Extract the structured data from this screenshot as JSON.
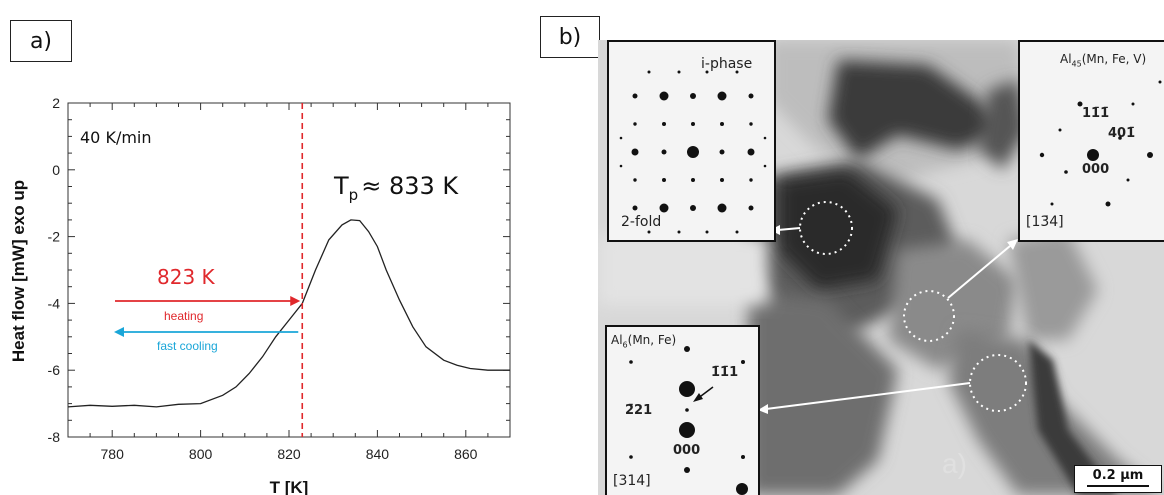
{
  "panels": {
    "a_label": "a)",
    "b_label": "b)"
  },
  "chart_data": {
    "type": "line",
    "xlabel": "T [K]",
    "ylabel": "Heat flow [mW] exo up",
    "xlim": [
      770,
      870
    ],
    "ylim": [
      -8,
      2
    ],
    "x_ticks": [
      780,
      800,
      820,
      840,
      860
    ],
    "y_ticks": [
      -8,
      -6,
      -4,
      -2,
      0,
      2
    ],
    "series": [
      {
        "x": [
          770,
          775,
          780,
          785,
          790,
          795,
          800,
          805,
          808,
          811,
          814,
          817,
          820,
          823,
          826,
          829,
          832,
          834,
          836,
          838,
          840,
          842,
          845,
          848,
          851,
          855,
          858,
          861,
          865,
          870
        ],
        "y": [
          -7.1,
          -7.05,
          -7.08,
          -7.05,
          -7.1,
          -7.02,
          -7.0,
          -6.75,
          -6.5,
          -6.1,
          -5.6,
          -5.0,
          -4.5,
          -4.0,
          -3.0,
          -2.1,
          -1.65,
          -1.5,
          -1.52,
          -1.85,
          -2.3,
          -3.0,
          -3.9,
          -4.7,
          -5.3,
          -5.7,
          -5.85,
          -5.95,
          -6.0,
          -6.0
        ]
      }
    ],
    "annotations": {
      "rate": "40 K/min",
      "tp_main": "T",
      "tp_sub": "p",
      "tp_rest": "≈ 833 K",
      "onset_label": "823 K",
      "onset_value": 823,
      "heating_label": "heating",
      "cooling_label": "fast cooling"
    },
    "colors": {
      "curve": "#222222",
      "marker": "#e0282c",
      "heating": "#e0282c",
      "cooling": "#1aa6d8"
    }
  },
  "tem": {
    "inset_iphase": {
      "title": "i-phase",
      "caption": "2-fold"
    },
    "inset_al45": {
      "title_main": "Al",
      "title_sub": "45",
      "title_rest": "(Mn, Fe, V)",
      "spot_a": "11̄1̄",
      "spot_b": "401̄",
      "center": "000",
      "zone": "[13̄4]"
    },
    "inset_al6": {
      "title_main": "Al",
      "title_sub": "6",
      "title_rest": "(Mn, Fe)",
      "spot_a": "1̄1̄1",
      "spot_b": "2̄21",
      "center": "000",
      "zone": "[314]"
    },
    "scalebar": "0.2 µm",
    "faint_label": "a)"
  }
}
